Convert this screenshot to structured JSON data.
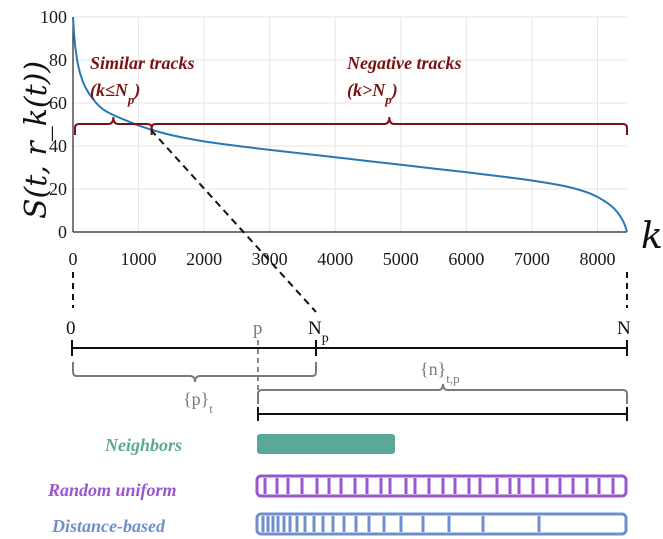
{
  "chart_data": {
    "type": "line",
    "title": "",
    "ylabel": "S(t, r_k(t))",
    "xlabel": "k",
    "xlim": [
      0,
      8450
    ],
    "ylim": [
      0,
      100
    ],
    "x_ticks": [
      "0",
      "1000",
      "2000",
      "3000",
      "4000",
      "5000",
      "6000",
      "7000",
      "8000"
    ],
    "y_ticks": [
      "0",
      "20",
      "40",
      "60",
      "80",
      "100"
    ],
    "grid": true,
    "series": [
      {
        "x": [
          0,
          20,
          50,
          100,
          200,
          400,
          600,
          800,
          1000,
          1200,
          1500,
          2000,
          2500,
          3000,
          3500,
          4000,
          4500,
          5000,
          5500,
          6000,
          6500,
          7000,
          7500,
          7800,
          8000,
          8200,
          8300,
          8400,
          8450
        ],
        "y": [
          100,
          90,
          82,
          74,
          66,
          58,
          54.5,
          52,
          49.5,
          47.5,
          45,
          42,
          40,
          38.2,
          36.5,
          34.8,
          33,
          31.3,
          29.5,
          27.8,
          26,
          24,
          21.5,
          19,
          16.5,
          12.5,
          9.5,
          5,
          0
        ],
        "color": "#2878b5"
      }
    ],
    "annotations": {
      "similar": {
        "line1": "Similar tracks",
        "line2_open": "(k≤N",
        "line2_sub": "p",
        "line2_close": ")"
      },
      "negative": {
        "line1": "Negative tracks",
        "line2_open": "(k>N",
        "line2_sub": "p",
        "line2_close": ")"
      }
    },
    "brace_color": "#7a1212",
    "split_k": 1200
  },
  "index_line": {
    "label_0": "0",
    "label_p": "p",
    "label_Np_base": "N",
    "label_Np_sub": "p",
    "label_N": "N",
    "set_p_base": "{p}",
    "set_p_sub": "t",
    "set_n_base": "{n}",
    "set_n_sub": "t,p"
  },
  "legend": [
    {
      "label": "Neighbors",
      "color": "#5aa898"
    },
    {
      "label": "Random uniform",
      "color": "#9a55d0"
    },
    {
      "label": "Distance-based",
      "color": "#6f8fcc"
    }
  ]
}
